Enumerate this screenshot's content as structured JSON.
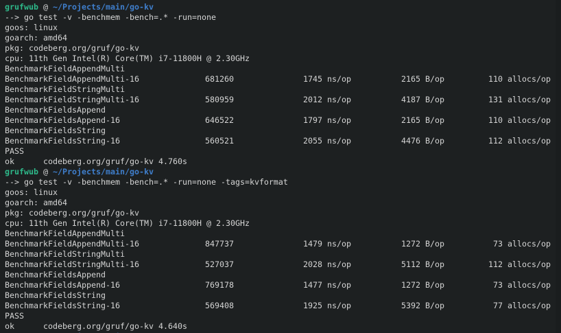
{
  "theme": {
    "background": "#1d2021",
    "foreground": "#d5d5d5",
    "prompt_user_color": "#2eb98a",
    "prompt_path_color": "#3f7ecb",
    "scrollbar_color": "#1a1d1e"
  },
  "prompt": {
    "user": "grufwub",
    "separator": " @ ",
    "path": "~/Projects/main/go-kv"
  },
  "terminal": {
    "lines": [
      {
        "type": "prompt"
      },
      {
        "type": "command",
        "text": "--> go test -v -benchmem -bench=.* -run=none"
      },
      {
        "type": "output",
        "text": "goos: linux"
      },
      {
        "type": "output",
        "text": "goarch: amd64"
      },
      {
        "type": "output",
        "text": "pkg: codeberg.org/gruf/go-kv"
      },
      {
        "type": "output",
        "text": "cpu: 11th Gen Intel(R) Core(TM) i7-11800H @ 2.30GHz"
      },
      {
        "type": "output",
        "text": "BenchmarkFieldAppendMulti"
      },
      {
        "type": "bench",
        "name": "BenchmarkFieldAppendMulti-16",
        "iterations": "681260",
        "time": "1745 ns/op",
        "bytes": "2165 B/op",
        "allocs": "110 allocs/op"
      },
      {
        "type": "output",
        "text": "BenchmarkFieldStringMulti"
      },
      {
        "type": "bench",
        "name": "BenchmarkFieldStringMulti-16",
        "iterations": "580959",
        "time": "2012 ns/op",
        "bytes": "4187 B/op",
        "allocs": "131 allocs/op"
      },
      {
        "type": "output",
        "text": "BenchmarkFieldsAppend"
      },
      {
        "type": "bench",
        "name": "BenchmarkFieldsAppend-16",
        "iterations": "646522",
        "time": "1797 ns/op",
        "bytes": "2165 B/op",
        "allocs": "110 allocs/op"
      },
      {
        "type": "output",
        "text": "BenchmarkFieldsString"
      },
      {
        "type": "bench",
        "name": "BenchmarkFieldsString-16",
        "iterations": "560521",
        "time": "2055 ns/op",
        "bytes": "4476 B/op",
        "allocs": "112 allocs/op"
      },
      {
        "type": "output",
        "text": "PASS"
      },
      {
        "type": "ok",
        "label": "ok",
        "text": "codeberg.org/gruf/go-kv 4.760s"
      },
      {
        "type": "prompt"
      },
      {
        "type": "command",
        "text": "--> go test -v -benchmem -bench=.* -run=none -tags=kvformat"
      },
      {
        "type": "output",
        "text": "goos: linux"
      },
      {
        "type": "output",
        "text": "goarch: amd64"
      },
      {
        "type": "output",
        "text": "pkg: codeberg.org/gruf/go-kv"
      },
      {
        "type": "output",
        "text": "cpu: 11th Gen Intel(R) Core(TM) i7-11800H @ 2.30GHz"
      },
      {
        "type": "output",
        "text": "BenchmarkFieldAppendMulti"
      },
      {
        "type": "bench",
        "name": "BenchmarkFieldAppendMulti-16",
        "iterations": "847737",
        "time": "1479 ns/op",
        "bytes": "1272 B/op",
        "allocs": "73 allocs/op"
      },
      {
        "type": "output",
        "text": "BenchmarkFieldStringMulti"
      },
      {
        "type": "bench",
        "name": "BenchmarkFieldStringMulti-16",
        "iterations": "527037",
        "time": "2028 ns/op",
        "bytes": "5112 B/op",
        "allocs": "112 allocs/op"
      },
      {
        "type": "output",
        "text": "BenchmarkFieldsAppend"
      },
      {
        "type": "bench",
        "name": "BenchmarkFieldsAppend-16",
        "iterations": "769178",
        "time": "1477 ns/op",
        "bytes": "1272 B/op",
        "allocs": "73 allocs/op"
      },
      {
        "type": "output",
        "text": "BenchmarkFieldsString"
      },
      {
        "type": "bench",
        "name": "BenchmarkFieldsString-16",
        "iterations": "569408",
        "time": "1925 ns/op",
        "bytes": "5392 B/op",
        "allocs": "77 allocs/op"
      },
      {
        "type": "output",
        "text": "PASS"
      },
      {
        "type": "ok",
        "label": "ok",
        "text": "codeberg.org/gruf/go-kv 4.640s"
      },
      {
        "type": "prompt",
        "partial": true
      }
    ]
  }
}
